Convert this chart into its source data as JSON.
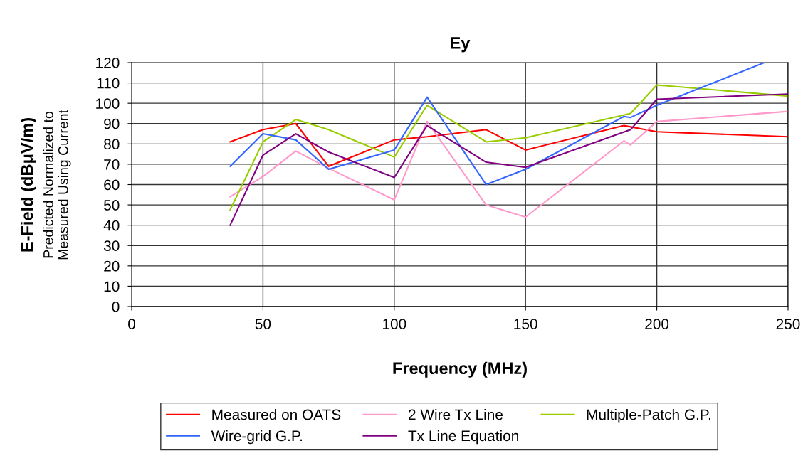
{
  "chart_data": {
    "type": "line",
    "title": "Ey",
    "xlabel": "Frequency (MHz)",
    "ylabel": "E-Field (dBμV/m)",
    "annotations": [
      "Predicted Normalized to\nMeasured Using Current"
    ],
    "xlim": [
      0,
      250
    ],
    "xticks": [
      0,
      50,
      100,
      150,
      200,
      250
    ],
    "ylim": [
      0,
      120
    ],
    "yticks": [
      0,
      10,
      20,
      30,
      40,
      50,
      60,
      70,
      80,
      90,
      100,
      110,
      120
    ],
    "grid": true,
    "legend": "bottom",
    "marker": "none",
    "line_style": "solid",
    "series": [
      {
        "name": "Measured on OATS",
        "color": "#ff0000",
        "x": [
          37.5,
          50,
          62.5,
          75,
          100,
          112.5,
          135,
          150,
          187.5,
          200,
          250
        ],
        "values": [
          81,
          87,
          90,
          69,
          82,
          83.5,
          87,
          77,
          89,
          86,
          83.5
        ]
      },
      {
        "name": "2 Wire Tx Line",
        "color": "#ff99cc",
        "x": [
          37.5,
          50,
          62.5,
          75,
          100,
          112.5,
          135,
          150,
          187.5,
          190,
          200,
          250
        ],
        "values": [
          54,
          64,
          76.5,
          68,
          52.5,
          91,
          50,
          44,
          81.5,
          79.5,
          91,
          96
        ]
      },
      {
        "name": "Multiple-Patch G.P.",
        "color": "#99cc00",
        "x": [
          37.5,
          50,
          62.5,
          75,
          100,
          112.5,
          135,
          150,
          190,
          200,
          250
        ],
        "values": [
          47.5,
          81,
          92,
          87,
          73.5,
          99,
          81,
          83,
          95,
          109,
          103.5
        ]
      },
      {
        "name": "Wire-grid G.P.",
        "color": "#3366ff",
        "x": [
          37.5,
          50,
          62.5,
          75,
          100,
          112.5,
          135,
          150,
          187.5,
          190,
          200,
          241
        ],
        "values": [
          69,
          85,
          82,
          67.5,
          77,
          103,
          60,
          67.5,
          93.5,
          93,
          99,
          120
        ]
      },
      {
        "name": "Tx Line Equation",
        "color": "#800080",
        "x": [
          37.5,
          50,
          62.5,
          75,
          100,
          112.5,
          135,
          150,
          190,
          200,
          250
        ],
        "values": [
          40,
          74.5,
          85,
          76,
          63.5,
          89,
          71,
          68.5,
          87,
          102,
          104.5
        ]
      }
    ]
  }
}
